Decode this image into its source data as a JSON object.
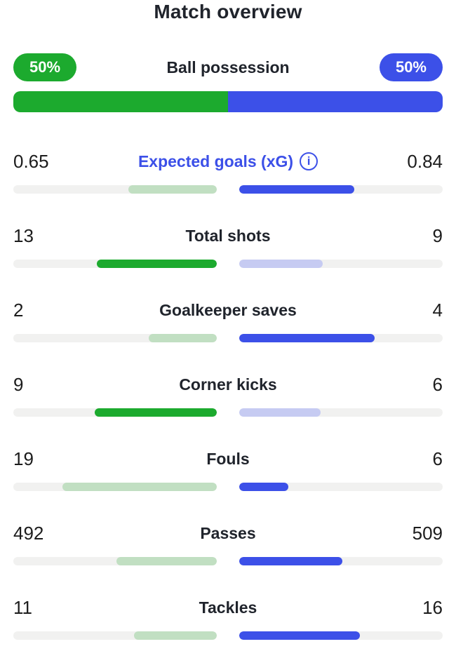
{
  "title": "Match overview",
  "colors": {
    "home": "#1caa2e",
    "away": "#3c50e8",
    "home_light": "#c1dfc2",
    "away_light": "#c6cbf2",
    "track": "#f1f1f0",
    "text": "#1c1c1c"
  },
  "possession": {
    "label": "Ball possession",
    "home_pct_label": "50%",
    "away_pct_label": "50%",
    "home_value": 50,
    "away_value": 50
  },
  "info_icon_glyph": "i",
  "stats": [
    {
      "label": "Expected goals (xG)",
      "home": "0.65",
      "away": "0.84",
      "home_fill_pct": 43.6,
      "away_fill_pct": 56.4,
      "home_strong": false,
      "away_strong": true,
      "accent": true,
      "has_info": true
    },
    {
      "label": "Total shots",
      "home": "13",
      "away": "9",
      "home_fill_pct": 59.1,
      "away_fill_pct": 40.9,
      "home_strong": true,
      "away_strong": false,
      "accent": false,
      "has_info": false
    },
    {
      "label": "Goalkeeper saves",
      "home": "2",
      "away": "4",
      "home_fill_pct": 33.3,
      "away_fill_pct": 66.7,
      "home_strong": false,
      "away_strong": true,
      "accent": false,
      "has_info": false
    },
    {
      "label": "Corner kicks",
      "home": "9",
      "away": "6",
      "home_fill_pct": 60.0,
      "away_fill_pct": 40.0,
      "home_strong": true,
      "away_strong": false,
      "accent": false,
      "has_info": false
    },
    {
      "label": "Fouls",
      "home": "19",
      "away": "6",
      "home_fill_pct": 76.0,
      "away_fill_pct": 24.0,
      "home_strong": false,
      "away_strong": true,
      "accent": false,
      "has_info": false
    },
    {
      "label": "Passes",
      "home": "492",
      "away": "509",
      "home_fill_pct": 49.2,
      "away_fill_pct": 50.8,
      "home_strong": false,
      "away_strong": true,
      "accent": false,
      "has_info": false
    },
    {
      "label": "Tackles",
      "home": "11",
      "away": "16",
      "home_fill_pct": 40.7,
      "away_fill_pct": 59.3,
      "home_strong": false,
      "away_strong": true,
      "accent": false,
      "has_info": false
    }
  ]
}
